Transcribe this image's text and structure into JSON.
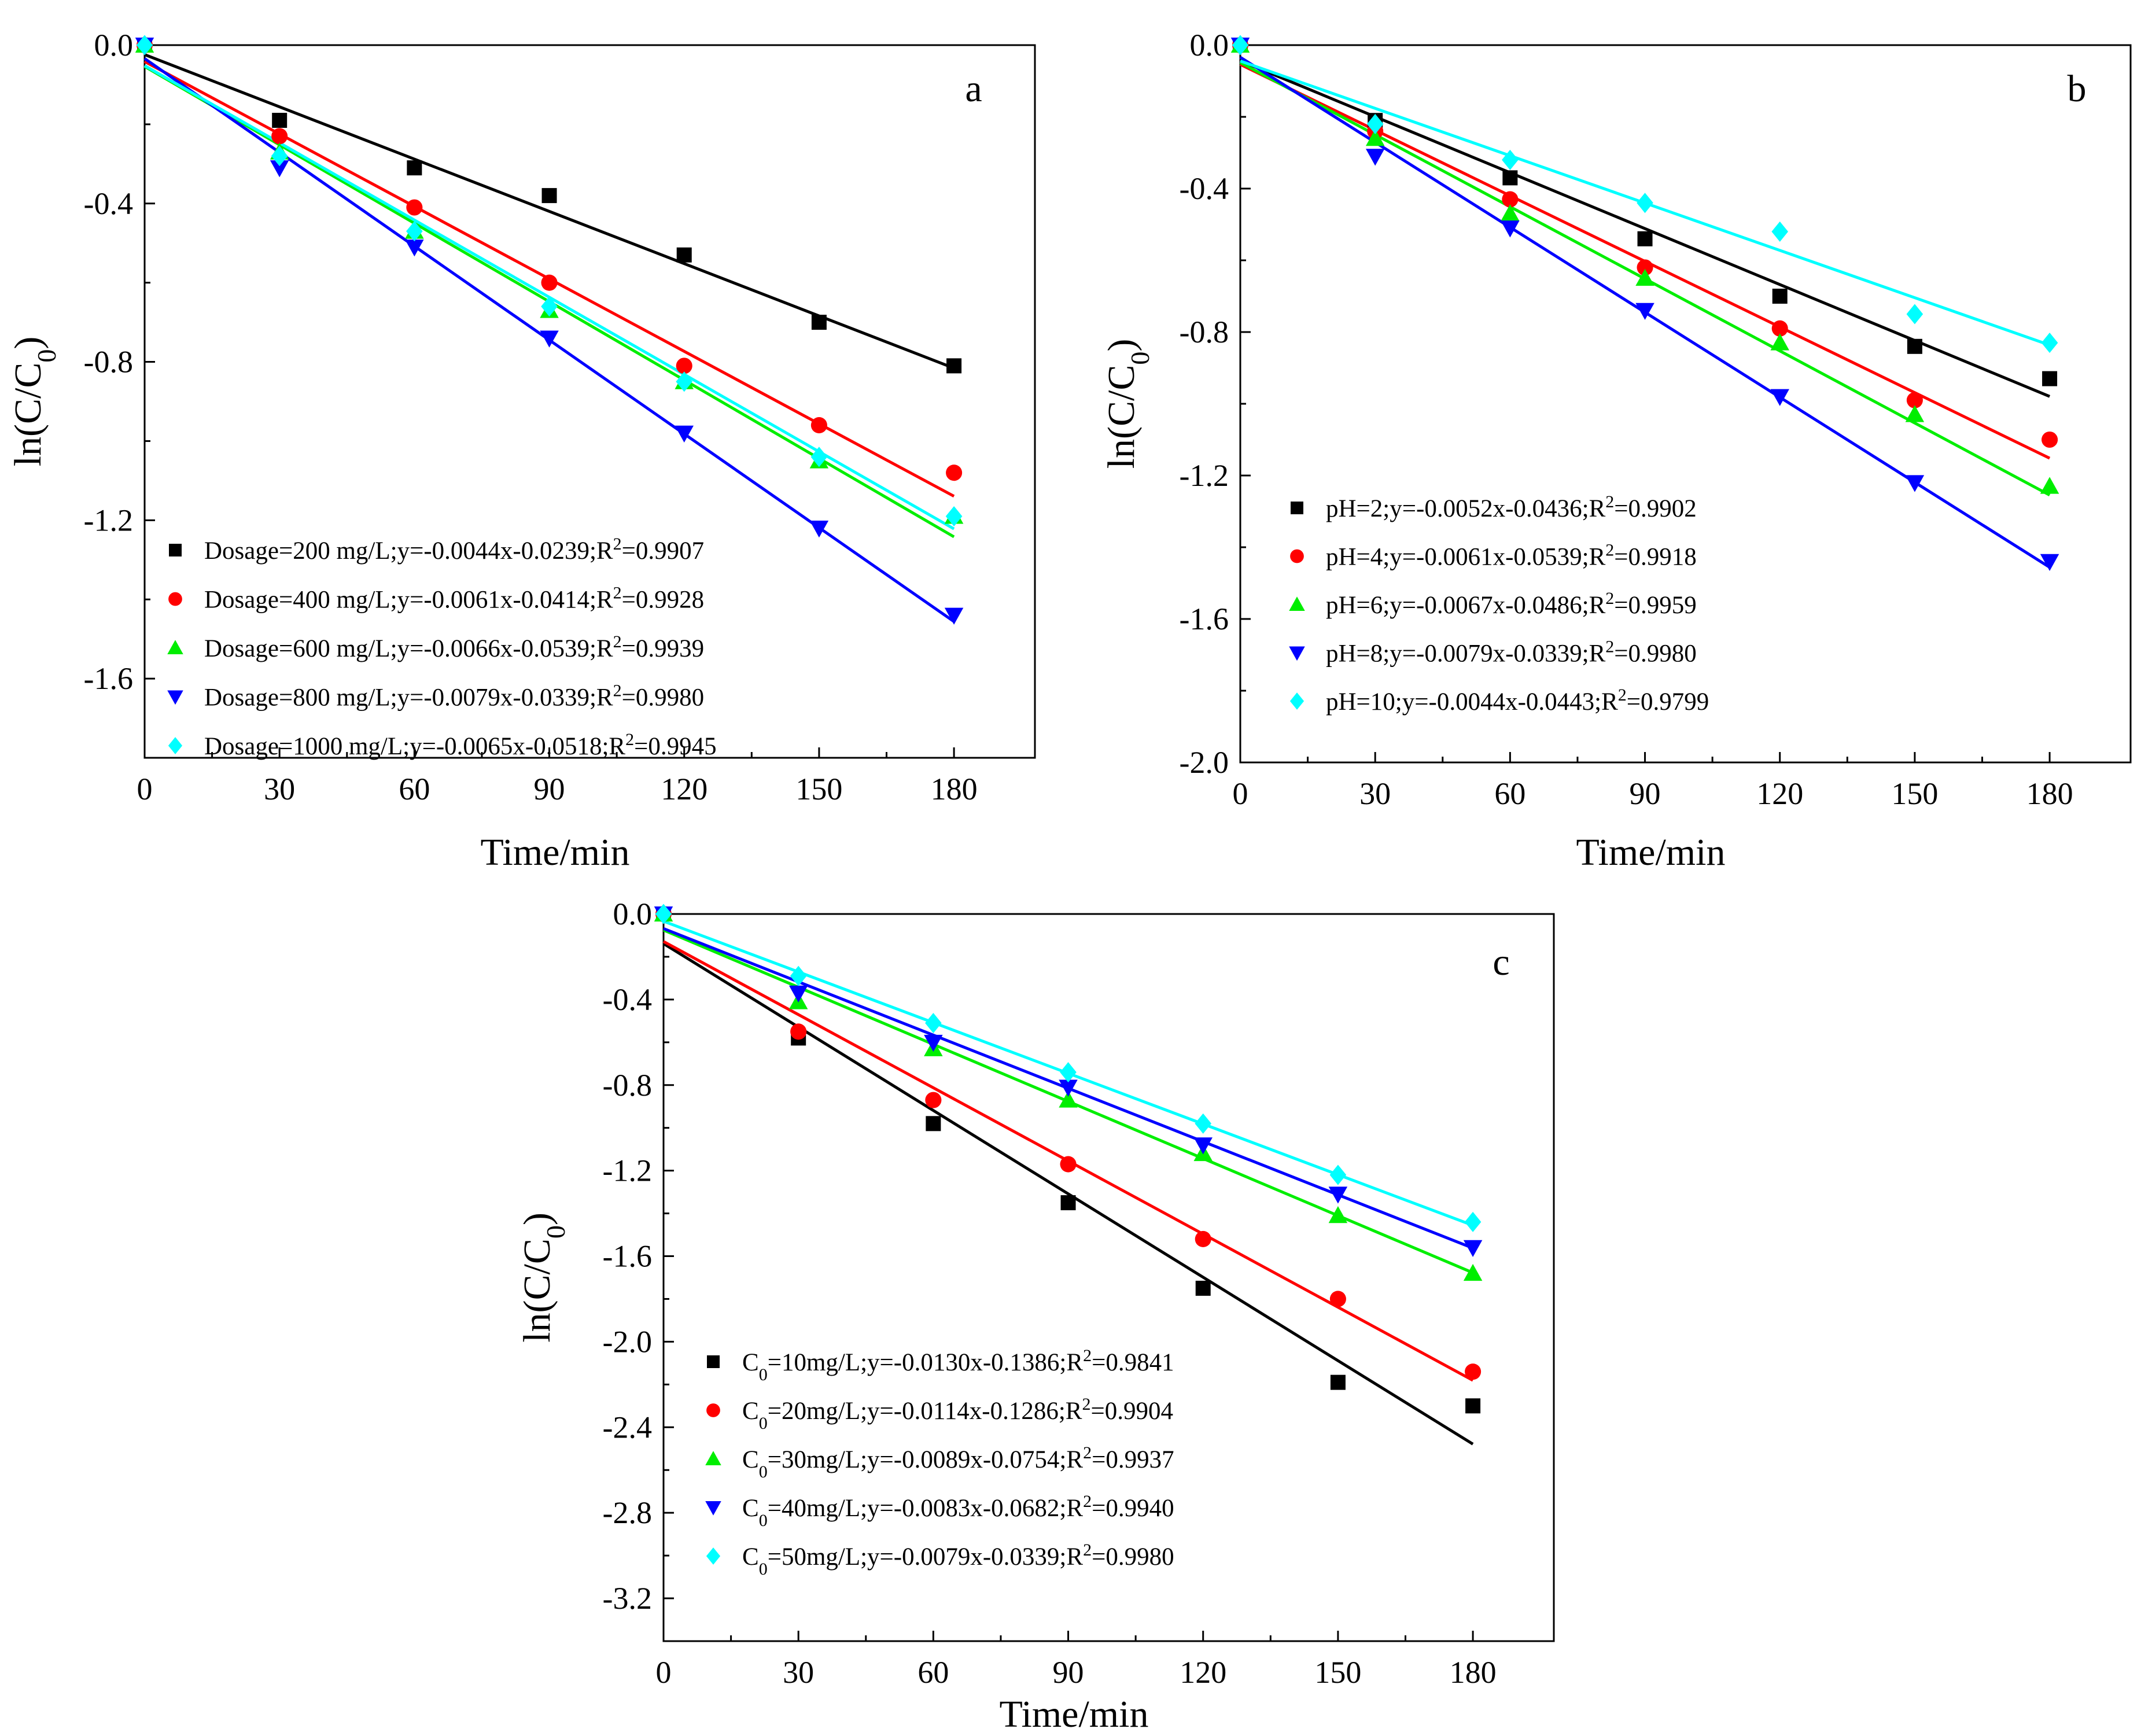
{
  "chart_data": [
    {
      "type": "scatter",
      "panel_label": "a",
      "xlabel": "Time/min",
      "ylabel": "ln(C/C0)",
      "xlim": [
        0,
        198
      ],
      "ylim": [
        -1.8,
        0
      ],
      "xticks": [
        0,
        30,
        60,
        90,
        120,
        150,
        180
      ],
      "yticks": [
        0.0,
        -0.4,
        -0.8,
        -1.2,
        -1.6
      ],
      "ytick_labels": [
        "0.0",
        "-0.4",
        "-0.8",
        "-1.2",
        "-1.6"
      ],
      "legend_position": "bottom-left",
      "x": [
        0,
        30,
        60,
        90,
        120,
        150,
        180
      ],
      "series": [
        {
          "name": "Dosage=200 mg/L;y=-0.0044x-0.0239;R",
          "r2": "0.9907",
          "color": "#000000",
          "marker": "square",
          "slope": -0.0044,
          "intercept": -0.0239,
          "values": [
            0,
            -0.19,
            -0.31,
            -0.38,
            -0.53,
            -0.7,
            -0.81
          ]
        },
        {
          "name": "Dosage=400 mg/L;y=-0.0061x-0.0414;R",
          "r2": "0.9928",
          "color": "#ff0000",
          "marker": "circle",
          "slope": -0.0061,
          "intercept": -0.0414,
          "values": [
            0,
            -0.23,
            -0.41,
            -0.6,
            -0.81,
            -0.96,
            -1.08
          ]
        },
        {
          "name": "Dosage=600 mg/L;y=-0.0066x-0.0539;R",
          "r2": "0.9939",
          "color": "#00ee00",
          "marker": "triangle-up",
          "slope": -0.0066,
          "intercept": -0.0539,
          "values": [
            0,
            -0.27,
            -0.47,
            -0.67,
            -0.85,
            -1.05,
            -1.19
          ]
        },
        {
          "name": "Dosage=800 mg/L;y=-0.0079x-0.0339;R",
          "r2": "0.9980",
          "color": "#0000ff",
          "marker": "triangle-down",
          "slope": -0.0079,
          "intercept": -0.0339,
          "values": [
            0,
            -0.31,
            -0.51,
            -0.74,
            -0.98,
            -1.22,
            -1.44
          ]
        },
        {
          "name": "Dosage=1000 mg/L;y=-0.0065x-0.0518;R",
          "r2": "0.9945",
          "color": "#00ffff",
          "marker": "diamond",
          "slope": -0.0065,
          "intercept": -0.0518,
          "values": [
            0,
            -0.28,
            -0.47,
            -0.66,
            -0.85,
            -1.04,
            -1.19
          ]
        }
      ]
    },
    {
      "type": "scatter",
      "panel_label": "b",
      "xlabel": "Time/min",
      "ylabel": "ln(C/C0)",
      "xlim": [
        0,
        198
      ],
      "ylim": [
        -2.0,
        0
      ],
      "xticks": [
        0,
        30,
        60,
        90,
        120,
        150,
        180
      ],
      "yticks": [
        0.0,
        -0.4,
        -0.8,
        -1.2,
        -1.6,
        -2.0
      ],
      "ytick_labels": [
        "0.0",
        "-0.4",
        "-0.8",
        "-1.2",
        "-1.6",
        "-2.0"
      ],
      "legend_position": "lower-middle",
      "x": [
        0,
        30,
        60,
        90,
        120,
        150,
        180
      ],
      "series": [
        {
          "name": "pH=2;y=-0.0052x-0.0436;R",
          "r2": "0.9902",
          "color": "#000000",
          "marker": "square",
          "slope": -0.0052,
          "intercept": -0.0436,
          "values": [
            0,
            -0.21,
            -0.37,
            -0.54,
            -0.7,
            -0.84,
            -0.93
          ]
        },
        {
          "name": "pH=4;y=-0.0061x-0.0539;R",
          "r2": "0.9918",
          "color": "#ff0000",
          "marker": "circle",
          "slope": -0.0061,
          "intercept": -0.0539,
          "values": [
            0,
            -0.24,
            -0.43,
            -0.62,
            -0.79,
            -0.99,
            -1.1
          ]
        },
        {
          "name": "pH=6;y=-0.0067x-0.0486;R",
          "r2": "0.9959",
          "color": "#00ee00",
          "marker": "triangle-up",
          "slope": -0.0067,
          "intercept": -0.0486,
          "values": [
            0,
            -0.26,
            -0.47,
            -0.65,
            -0.83,
            -1.03,
            -1.23
          ]
        },
        {
          "name": "pH=8;y=-0.0079x-0.0339;R",
          "r2": "0.9980",
          "color": "#0000ff",
          "marker": "triangle-down",
          "slope": -0.0079,
          "intercept": -0.0339,
          "values": [
            0,
            -0.31,
            -0.51,
            -0.74,
            -0.98,
            -1.22,
            -1.44
          ]
        },
        {
          "name": "pH=10;y=-0.0044x-0.0443;R",
          "r2": "0.9799",
          "color": "#00ffff",
          "marker": "diamond",
          "slope": -0.0044,
          "intercept": -0.0443,
          "values": [
            0,
            -0.22,
            -0.32,
            -0.44,
            -0.52,
            -0.75,
            -0.83
          ]
        }
      ]
    },
    {
      "type": "scatter",
      "panel_label": "c",
      "xlabel": "Time/min",
      "ylabel": "ln(C/C0)",
      "xlim": [
        0,
        198
      ],
      "ylim": [
        -3.4,
        0
      ],
      "xticks": [
        0,
        30,
        60,
        90,
        120,
        150,
        180
      ],
      "yticks": [
        0.0,
        -0.4,
        -0.8,
        -1.2,
        -1.6,
        -2.0,
        -2.4,
        -2.8,
        -3.2
      ],
      "ytick_labels": [
        "0.0",
        "-0.4",
        "-0.8",
        "-1.2",
        "-1.6",
        "-2.0",
        "-2.4",
        "-2.8",
        "-3.2"
      ],
      "legend_position": "bottom-left",
      "x": [
        0,
        30,
        60,
        90,
        120,
        150,
        180
      ],
      "series": [
        {
          "name": "C0=10mg/L;y=-0.0130x-0.1386;R",
          "r2": "0.9841",
          "color": "#000000",
          "marker": "square",
          "slope": -0.013,
          "intercept": -0.1386,
          "values": [
            0,
            -0.58,
            -0.98,
            -1.35,
            -1.75,
            -2.19,
            -2.3
          ]
        },
        {
          "name": "C0=20mg/L;y=-0.0114x-0.1286;R",
          "r2": "0.9904",
          "color": "#ff0000",
          "marker": "circle",
          "slope": -0.0114,
          "intercept": -0.1286,
          "values": [
            0,
            -0.55,
            -0.87,
            -1.17,
            -1.52,
            -1.8,
            -2.14
          ]
        },
        {
          "name": "C0=30mg/L;y=-0.0089x-0.0754;R",
          "r2": "0.9937",
          "color": "#00ee00",
          "marker": "triangle-up",
          "slope": -0.0089,
          "intercept": -0.0754,
          "values": [
            0,
            -0.41,
            -0.63,
            -0.87,
            -1.12,
            -1.41,
            -1.68
          ]
        },
        {
          "name": "C0=40mg/L;y=-0.0083x-0.0682;R",
          "r2": "0.9940",
          "color": "#0000ff",
          "marker": "triangle-down",
          "slope": -0.0083,
          "intercept": -0.0682,
          "values": [
            0,
            -0.37,
            -0.6,
            -0.81,
            -1.08,
            -1.31,
            -1.56
          ]
        },
        {
          "name": "C0=50mg/L;y=-0.0079x-0.0339;R",
          "r2": "0.9980",
          "color": "#00ffff",
          "marker": "diamond",
          "slope": -0.0079,
          "intercept": -0.0339,
          "values": [
            0,
            -0.29,
            -0.51,
            -0.74,
            -0.98,
            -1.22,
            -1.44
          ]
        }
      ]
    }
  ]
}
